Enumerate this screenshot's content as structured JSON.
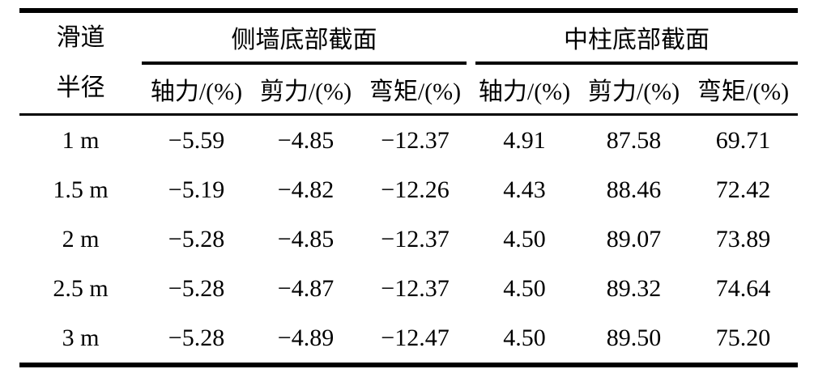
{
  "table": {
    "row_header": {
      "line1": "滑道",
      "line2": "半径"
    },
    "groups": [
      {
        "label": "侧墙底部截面",
        "columns": [
          "轴力/(%)",
          "剪力/(%)",
          "弯矩/(%)"
        ]
      },
      {
        "label": "中柱底部截面",
        "columns": [
          "轴力/(%)",
          "剪力/(%)",
          "弯矩/(%)"
        ]
      }
    ],
    "rows": [
      {
        "radius": "1 m",
        "values": [
          "−5.59",
          "−4.85",
          "−12.37",
          "4.91",
          "87.58",
          "69.71"
        ]
      },
      {
        "radius": "1.5 m",
        "values": [
          "−5.19",
          "−4.82",
          "−12.26",
          "4.43",
          "88.46",
          "72.42"
        ]
      },
      {
        "radius": "2 m",
        "values": [
          "−5.28",
          "−4.85",
          "−12.37",
          "4.50",
          "89.07",
          "73.89"
        ]
      },
      {
        "radius": "2.5 m",
        "values": [
          "−5.28",
          "−4.87",
          "−12.37",
          "4.50",
          "89.32",
          "74.64"
        ]
      },
      {
        "radius": "3 m",
        "values": [
          "−5.28",
          "−4.89",
          "−12.47",
          "4.50",
          "89.50",
          "75.20"
        ]
      }
    ],
    "colors": {
      "text": "#000000",
      "background": "#ffffff",
      "rule": "#000000"
    }
  },
  "chart_data": {
    "type": "table",
    "columns": [
      "滑道半径",
      "侧墙底部截面 轴力/(%)",
      "侧墙底部截面 剪力/(%)",
      "侧墙底部截面 弯矩/(%)",
      "中柱底部截面 轴力/(%)",
      "中柱底部截面 剪力/(%)",
      "中柱底部截面 弯矩/(%)"
    ],
    "rows": [
      [
        "1 m",
        -5.59,
        -4.85,
        -12.37,
        4.91,
        87.58,
        69.71
      ],
      [
        "1.5 m",
        -5.19,
        -4.82,
        -12.26,
        4.43,
        88.46,
        72.42
      ],
      [
        "2 m",
        -5.28,
        -4.85,
        -12.37,
        4.5,
        89.07,
        73.89
      ],
      [
        "2.5 m",
        -5.28,
        -4.87,
        -12.37,
        4.5,
        89.32,
        74.64
      ],
      [
        "3 m",
        -5.28,
        -4.89,
        -12.47,
        4.5,
        89.5,
        75.2
      ]
    ],
    "legend_position": "none",
    "grid": false
  }
}
